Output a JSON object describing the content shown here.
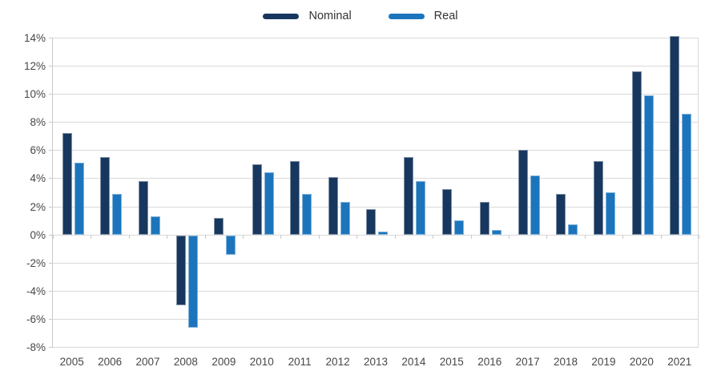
{
  "colors": {
    "background": "#ffffff",
    "nominal": "#17375e",
    "real": "#1c75bc",
    "gridline": "#d9d9d9",
    "axis": "#c9c9c9",
    "tick_label": "#474747",
    "legend_text": "#333333"
  },
  "chart_data": {
    "type": "bar",
    "title": "",
    "xlabel": "",
    "ylabel": "",
    "categories": [
      "2005",
      "2006",
      "2007",
      "2008",
      "2009",
      "2010",
      "2011",
      "2012",
      "2013",
      "2014",
      "2015",
      "2016",
      "2017",
      "2018",
      "2019",
      "2020",
      "2021"
    ],
    "series": [
      {
        "name": "Nominal",
        "color": "#17375e",
        "values": [
          7.2,
          5.5,
          3.8,
          -5.0,
          1.2,
          5.0,
          5.2,
          4.1,
          1.8,
          5.5,
          3.2,
          2.3,
          6.0,
          2.9,
          5.2,
          11.6,
          14.1
        ]
      },
      {
        "name": "Real",
        "color": "#1c75bc",
        "values": [
          5.1,
          2.9,
          1.3,
          -6.6,
          -1.4,
          4.4,
          2.9,
          2.3,
          0.2,
          3.8,
          1.0,
          0.3,
          4.2,
          0.7,
          3.0,
          9.9,
          8.6
        ]
      }
    ],
    "ylim": [
      -8,
      14
    ],
    "y_tick_step": 2,
    "y_ticks": [
      {
        "value": 14,
        "label": "14%"
      },
      {
        "value": 12,
        "label": "12%"
      },
      {
        "value": 10,
        "label": "10%"
      },
      {
        "value": 8,
        "label": "8%"
      },
      {
        "value": 6,
        "label": "6%"
      },
      {
        "value": 4,
        "label": "4%"
      },
      {
        "value": 2,
        "label": "2%"
      },
      {
        "value": 0,
        "label": "0%"
      },
      {
        "value": -2,
        "label": "-2%"
      },
      {
        "value": -4,
        "label": "-4%"
      },
      {
        "value": -6,
        "label": "-6%"
      },
      {
        "value": -8,
        "label": "-8%"
      }
    ],
    "grid": true,
    "legend_position": "top-center",
    "value_suffix": "%"
  }
}
